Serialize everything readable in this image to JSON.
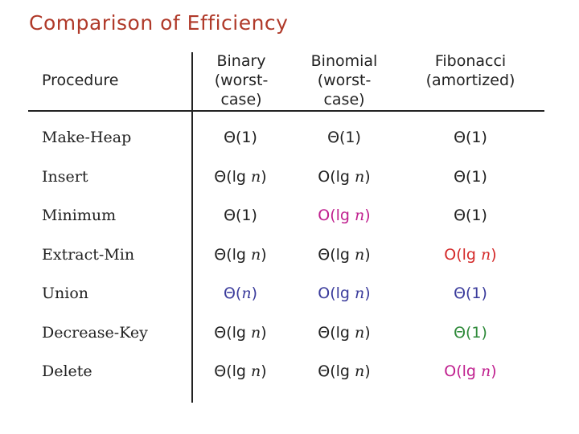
{
  "title": "Comparison of Efficiency",
  "headers": {
    "procedure": "Procedure",
    "binary": "Binary\n(worst-\ncase)",
    "binomial": "Binomial\n(worst-\ncase)",
    "fibonacci": "Fibonacci\n(amortized)"
  },
  "colors": {
    "title": "#b03a2a",
    "default": "#222222",
    "magenta": "#c0218f",
    "red": "#d42a2a",
    "blue": "#3b3c9c",
    "green": "#2f8a3a"
  },
  "rows": [
    {
      "name": "Make-Heap",
      "binary": {
        "text": "Θ(1)",
        "color": "default"
      },
      "binomial": {
        "text": "Θ(1)",
        "color": "default"
      },
      "fibonacci": {
        "text": "Θ(1)",
        "color": "default"
      }
    },
    {
      "name": "Insert",
      "binary": {
        "text": "Θ(lg n)",
        "color": "default"
      },
      "binomial": {
        "text": "O(lg n)",
        "color": "default"
      },
      "fibonacci": {
        "text": "Θ(1)",
        "color": "default"
      }
    },
    {
      "name": "Minimum",
      "binary": {
        "text": "Θ(1)",
        "color": "default"
      },
      "binomial": {
        "text": "O(lg n)",
        "color": "magenta"
      },
      "fibonacci": {
        "text": "Θ(1)",
        "color": "default"
      }
    },
    {
      "name": "Extract-Min",
      "binary": {
        "text": "Θ(lg n)",
        "color": "default"
      },
      "binomial": {
        "text": "Θ(lg n)",
        "color": "default"
      },
      "fibonacci": {
        "text": "O(lg n)",
        "color": "red"
      }
    },
    {
      "name": "Union",
      "binary": {
        "text": "Θ(n)",
        "color": "blue"
      },
      "binomial": {
        "text": "O(lg n)",
        "color": "blue"
      },
      "fibonacci": {
        "text": "Θ(1)",
        "color": "blue"
      }
    },
    {
      "name": "Decrease-Key",
      "binary": {
        "text": "Θ(lg n)",
        "color": "default"
      },
      "binomial": {
        "text": "Θ(lg n)",
        "color": "default"
      },
      "fibonacci": {
        "text": "Θ(1)",
        "color": "green"
      }
    },
    {
      "name": "Delete",
      "binary": {
        "text": "Θ(lg n)",
        "color": "default"
      },
      "binomial": {
        "text": "Θ(lg n)",
        "color": "default"
      },
      "fibonacci": {
        "text": "O(lg n)",
        "color": "magenta"
      }
    }
  ]
}
